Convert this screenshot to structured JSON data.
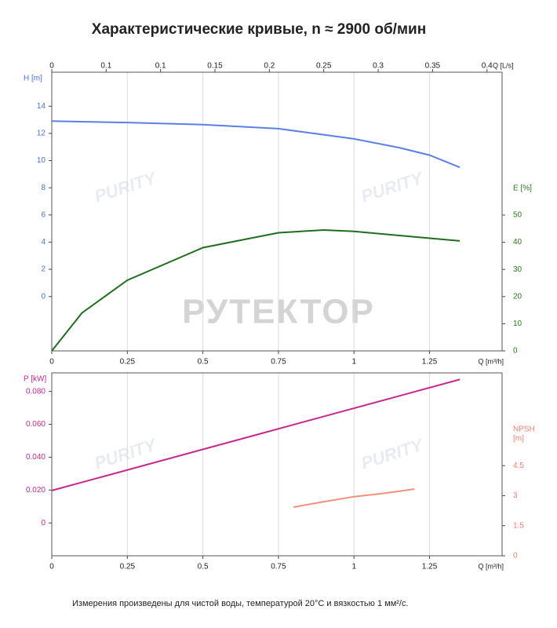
{
  "title": "Характеристические кривые, n ≈ 2900 об/мин",
  "footnote": "Измерения произведены для чистой воды, температурой 20°C и вязкостью 1 мм²/с.",
  "watermark": "РУТЕКТОР",
  "logo": "PURITY",
  "chart_data": [
    {
      "type": "line",
      "x_label": "Q [m³/h]",
      "x2_label": "Q [L/s]",
      "y_label": "H [m]",
      "y2_label": "E [%]",
      "y_color": "#4a6fd8",
      "y2_color": "#2a7a1a",
      "xlim": [
        0,
        1.49
      ],
      "xticks": [
        0,
        0.25,
        0.5,
        0.75,
        1,
        1.25
      ],
      "x2lim": [
        0,
        0.4139
      ],
      "x2ticks": [
        0,
        {
          "value": 0.05,
          "label": "0.1"
        },
        0.1,
        0.15,
        0.2,
        0.25,
        0.3,
        0.35,
        0.4
      ],
      "ylim": [
        -4,
        16.5
      ],
      "yticks": [
        0,
        2,
        4,
        6,
        8,
        10,
        12,
        14
      ],
      "y2lim": [
        0,
        102.6
      ],
      "y2ticks": [
        0,
        10,
        20,
        30,
        40,
        50
      ],
      "grid": "x",
      "series": [
        {
          "color": "#5a7fe6",
          "x": [
            0,
            0.25,
            0.5,
            0.75,
            1,
            1.15,
            1.25,
            1.35
          ],
          "values": [
            12.9,
            12.8,
            12.65,
            12.35,
            11.6,
            10.95,
            10.4,
            9.5
          ]
        },
        {
          "color": "#1f6e1f",
          "axis": "y2",
          "x": [
            0,
            0.1,
            0.25,
            0.5,
            0.75,
            0.9,
            1,
            1.2,
            1.35
          ],
          "values": [
            0,
            14,
            26,
            38,
            43.5,
            44.5,
            44,
            42,
            40.5
          ]
        }
      ]
    },
    {
      "type": "line",
      "x_label": "Q [m³/h]",
      "y_label": "P [kW]",
      "y2_label": [
        "NPSH",
        "[m]"
      ],
      "y_color": "#c8288c",
      "y2_color": "#f08070",
      "xlim": [
        0,
        1.49
      ],
      "xticks": [
        0,
        0.25,
        0.5,
        0.75,
        1,
        1.25
      ],
      "ylim": [
        -0.02,
        0.0913
      ],
      "yticks": [
        0,
        {
          "value": 0.02,
          "label": "0.020"
        },
        {
          "value": 0.04,
          "label": "0.040"
        },
        {
          "value": 0.06,
          "label": "0.060"
        },
        {
          "value": 0.08,
          "label": "0.080"
        }
      ],
      "y2lim": [
        0,
        9.13
      ],
      "y2ticks": [
        0,
        1.5,
        3,
        4.5
      ],
      "grid": "x",
      "series": [
        {
          "color": "#c8288c",
          "x": [
            0,
            0.675,
            1.35
          ],
          "values": [
            0.0197,
            0.0535,
            0.0873
          ]
        },
        {
          "color": "#f4907a",
          "axis": "y2",
          "x": [
            0.8,
            0.9,
            1,
            1.1,
            1.2
          ],
          "values": [
            2.43,
            2.7,
            2.95,
            3.12,
            3.33
          ]
        }
      ]
    }
  ]
}
